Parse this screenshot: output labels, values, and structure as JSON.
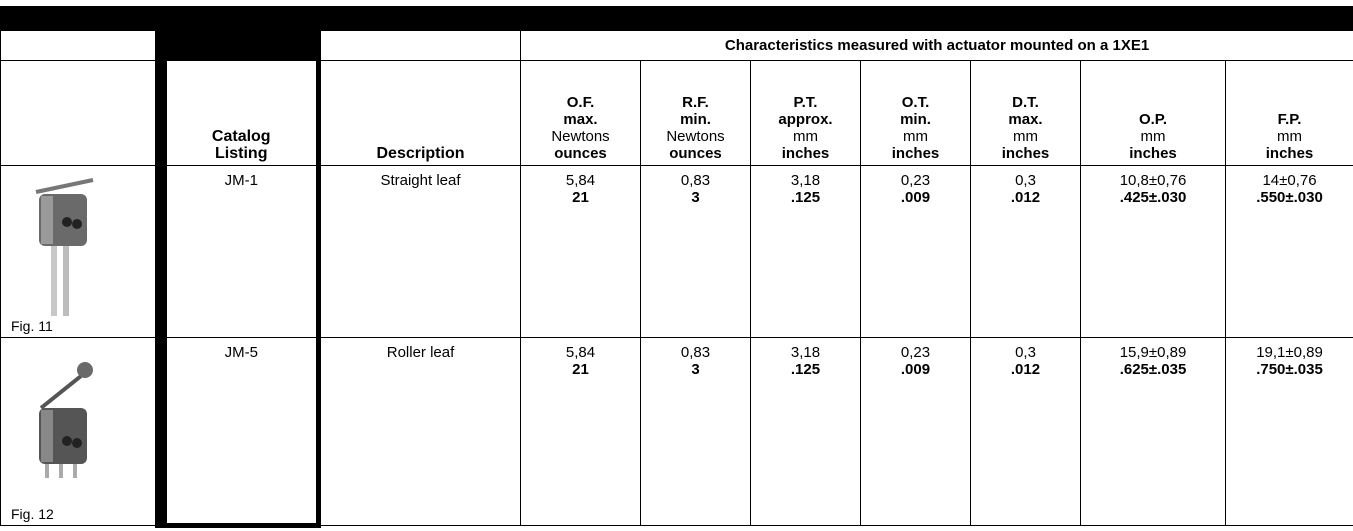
{
  "table": {
    "group_header": "Characteristics measured with actuator mounted on a 1XE1",
    "catalog_header": "Catalog Listing",
    "description_header": "Description",
    "spec_columns": [
      {
        "name": "O.F.",
        "qualifier": "max.",
        "metric_unit": "Newtons",
        "imperial_unit": "ounces"
      },
      {
        "name": "R.F.",
        "qualifier": "min.",
        "metric_unit": "Newtons",
        "imperial_unit": "ounces"
      },
      {
        "name": "P.T.",
        "qualifier": "approx.",
        "metric_unit": "mm",
        "imperial_unit": "inches"
      },
      {
        "name": "O.T.",
        "qualifier": "min.",
        "metric_unit": "mm",
        "imperial_unit": "inches"
      },
      {
        "name": "D.T.",
        "qualifier": "max.",
        "metric_unit": "mm",
        "imperial_unit": "inches"
      },
      {
        "name": "O.P.",
        "metric_unit": "mm",
        "imperial_unit": "inches"
      },
      {
        "name": "F.P.",
        "metric_unit": "mm",
        "imperial_unit": "inches"
      }
    ],
    "rows": [
      {
        "figure": "Fig. 11",
        "catalog": "JM-1",
        "description": "Straight leaf",
        "metric": [
          "5,84",
          "0,83",
          "3,18",
          "0,23",
          "0,3",
          "10,8±0,76",
          "14±0,76"
        ],
        "imperial": [
          "21",
          "3",
          ".125",
          ".009",
          ".012",
          ".425±.030",
          ".550±.030"
        ]
      },
      {
        "figure": "Fig. 12",
        "catalog": "JM-5",
        "description": "Roller leaf",
        "metric": [
          "5,84",
          "0,83",
          "3,18",
          "0,23",
          "0,3",
          "15,9±0,89",
          "19,1±0,89"
        ],
        "imperial": [
          "21",
          "3",
          ".125",
          ".009",
          ".012",
          ".625±.035",
          ".750±.035"
        ]
      }
    ]
  }
}
